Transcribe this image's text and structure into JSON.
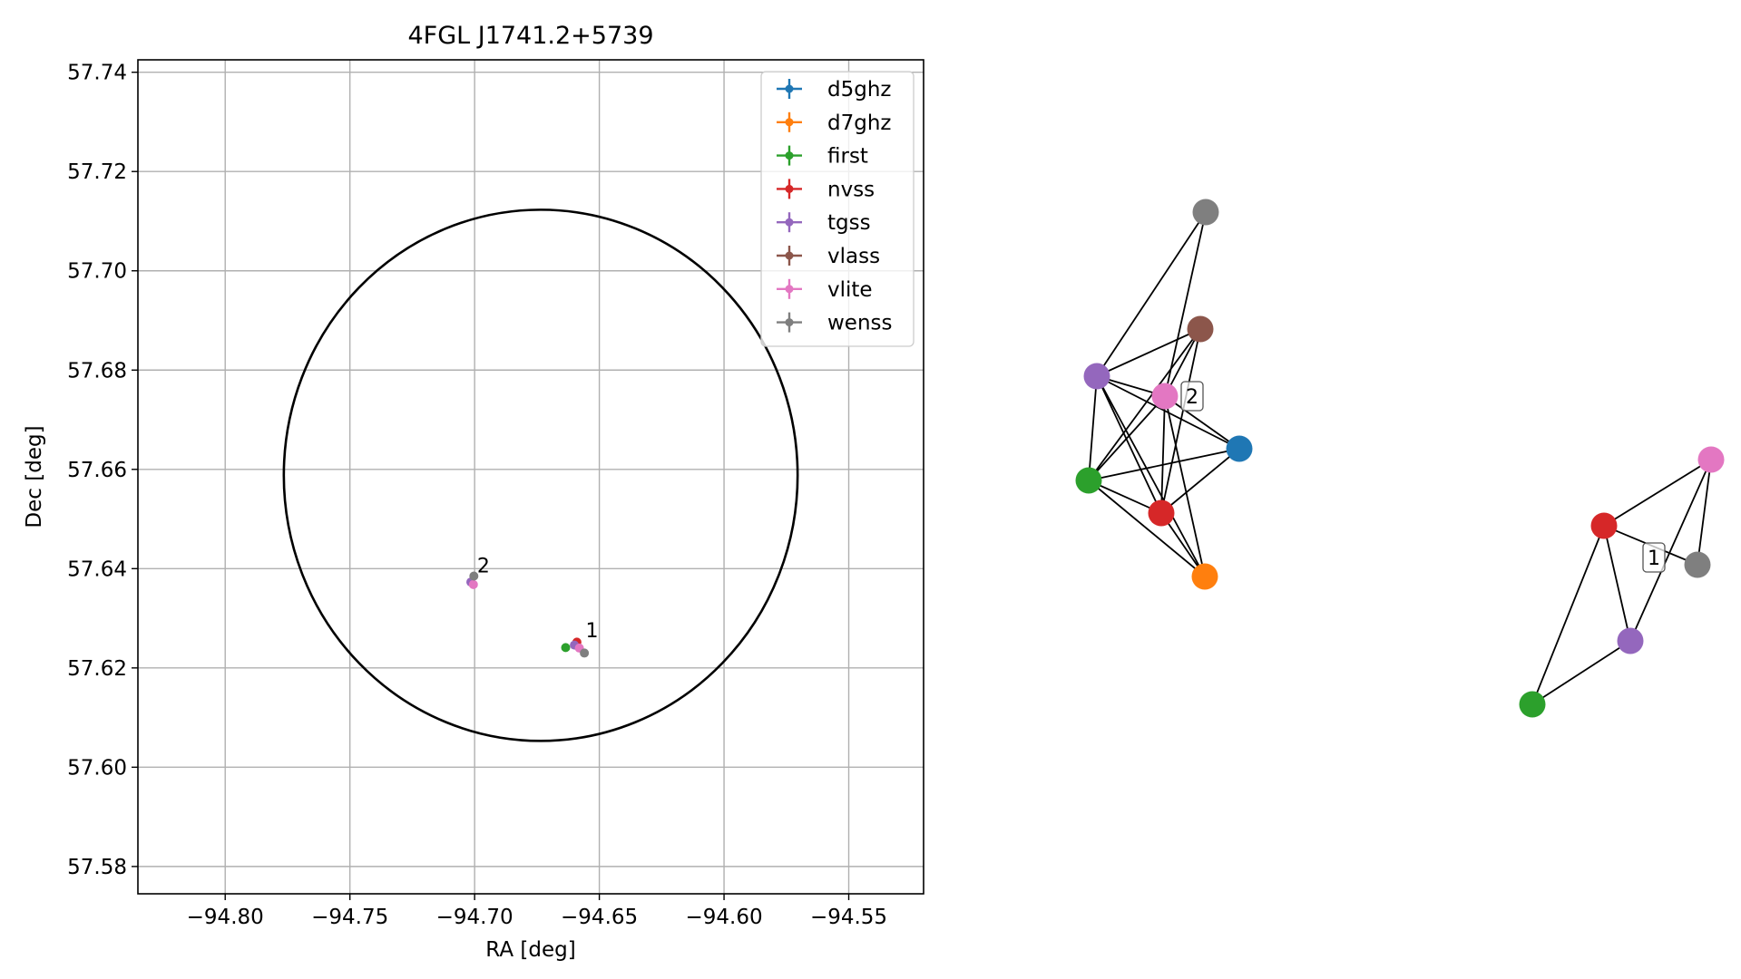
{
  "chart_data": [
    {
      "type": "scatter",
      "title": "4FGL J1741.2+5739",
      "xlabel": "RA [deg]",
      "ylabel": "Dec [deg]",
      "xlim": [
        -94.835,
        -94.52
      ],
      "ylim": [
        57.5745,
        57.7425
      ],
      "x_ticks": [
        -94.8,
        -94.75,
        -94.7,
        -94.65,
        -94.6,
        -94.55
      ],
      "x_tick_labels": [
        "−94.80",
        "−94.75",
        "−94.70",
        "−94.65",
        "−94.60",
        "−94.55"
      ],
      "y_ticks": [
        57.58,
        57.6,
        57.62,
        57.64,
        57.66,
        57.68,
        57.7,
        57.72,
        57.74
      ],
      "y_tick_labels": [
        "57.58",
        "57.60",
        "57.62",
        "57.64",
        "57.66",
        "57.68",
        "57.70",
        "57.72",
        "57.74"
      ],
      "grid": true,
      "legend_position": "top-right",
      "ellipse": {
        "center_ra": -94.6735,
        "center_dec": 57.6588,
        "semi_major_ra": 0.103,
        "semi_minor_dec": 0.0535,
        "color": "#000000"
      },
      "series": [
        {
          "name": "d5ghz",
          "color": "#1f77b4",
          "points": []
        },
        {
          "name": "d7ghz",
          "color": "#ff7f0e",
          "points": []
        },
        {
          "name": "first",
          "color": "#2ca02c",
          "points": [
            [
              -94.6635,
              57.6241
            ]
          ]
        },
        {
          "name": "nvss",
          "color": "#d62728",
          "points": [
            [
              -94.659,
              57.6252
            ]
          ]
        },
        {
          "name": "tgss",
          "color": "#9467bd",
          "points": [
            [
              -94.7015,
              57.6373
            ],
            [
              -94.66,
              57.6246
            ]
          ]
        },
        {
          "name": "vlass",
          "color": "#8c564b",
          "points": []
        },
        {
          "name": "vlite",
          "color": "#e377c2",
          "points": [
            [
              -94.7005,
              57.6368
            ],
            [
              -94.658,
              57.624
            ]
          ]
        },
        {
          "name": "wenss",
          "color": "#7f7f7f",
          "points": [
            [
              -94.7003,
              57.6385
            ],
            [
              -94.656,
              57.623
            ]
          ]
        }
      ],
      "annotations": [
        {
          "text": "2",
          "ra": -94.699,
          "dec": 57.6392
        },
        {
          "text": "1",
          "ra": -94.6555,
          "dec": 57.6262
        }
      ]
    },
    {
      "type": "network",
      "groups": [
        {
          "label": "2",
          "label_node": "vlite"
        },
        {
          "label": "1",
          "label_node": "wenss"
        }
      ]
    }
  ]
}
